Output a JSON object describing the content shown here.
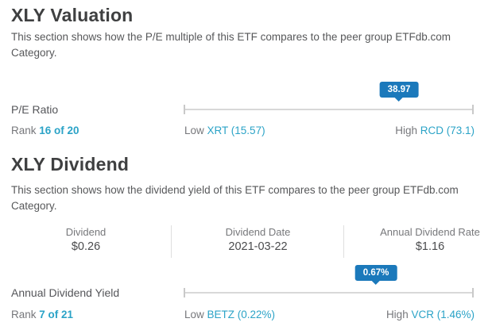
{
  "colors": {
    "accent_teal": "#2ba3c7",
    "tooltip_blue": "#1b79bb",
    "track_gray": "#d8d8d8"
  },
  "valuation": {
    "title": "XLY Valuation",
    "description": "This section shows how the P/E multiple of this ETF compares to the peer group ETFdb.com Category.",
    "metric_label": "P/E Ratio",
    "tooltip_value": "38.97",
    "slider_percent": 74.4,
    "rank_label": "Rank",
    "rank_value": "16 of 20",
    "low_label": "Low",
    "low_value": "XRT (15.57)",
    "high_label": "High",
    "high_value": "RCD (73.1)"
  },
  "dividend": {
    "title": "XLY Dividend",
    "description": "This section shows how the dividend yield of this ETF compares to the peer group ETFdb.com Category.",
    "table": {
      "columns": [
        {
          "label": "Dividend",
          "value": "$0.26"
        },
        {
          "label": "Dividend Date",
          "value": "2021-03-22"
        },
        {
          "label": "Annual Dividend Rate",
          "value": "$1.16"
        }
      ]
    },
    "metric_label": "Annual Dividend Yield",
    "tooltip_value": "0.67%",
    "slider_percent": 66.4,
    "rank_label": "Rank",
    "rank_value": "7 of 21",
    "low_label": "Low",
    "low_value": "BETZ (0.22%)",
    "high_label": "High",
    "high_value": "VCR (1.46%)"
  }
}
